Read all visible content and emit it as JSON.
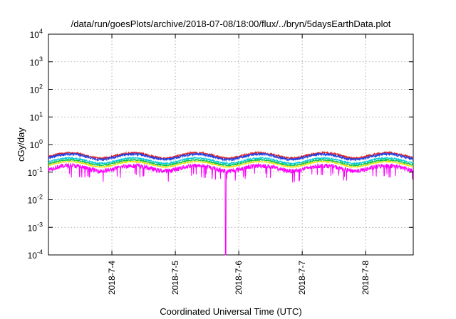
{
  "chart_data": {
    "type": "line",
    "title": "/data/run/goesPlots/archive/2018-07-08/18:00/flux/../bryn/5daysEarthData.plot",
    "xlabel": "Coordinated Universal Time (UTC)",
    "ylabel": "cGy/day",
    "yscale": "log",
    "ylim": [
      0.0001,
      10000
    ],
    "yticks": [
      {
        "value": 0.0001,
        "base": "10",
        "exp": "-4"
      },
      {
        "value": 0.001,
        "base": "10",
        "exp": "-3"
      },
      {
        "value": 0.01,
        "base": "10",
        "exp": "-2"
      },
      {
        "value": 0.1,
        "base": "10",
        "exp": "-1"
      },
      {
        "value": 1,
        "base": "10",
        "exp": "0"
      },
      {
        "value": 10,
        "base": "10",
        "exp": "1"
      },
      {
        "value": 100,
        "base": "10",
        "exp": "2"
      },
      {
        "value": 1000,
        "base": "10",
        "exp": "3"
      },
      {
        "value": 10000,
        "base": "10",
        "exp": "4"
      }
    ],
    "xlim": [
      "2018-07-03 00:00",
      "2018-07-08 18:00"
    ],
    "xticks": [
      {
        "value": "2018-07-04 00:00",
        "label": "2018-7-4"
      },
      {
        "value": "2018-07-05 00:00",
        "label": "2018-7-5"
      },
      {
        "value": "2018-07-06 00:00",
        "label": "2018-7-6"
      },
      {
        "value": "2018-07-07 00:00",
        "label": "2018-7-7"
      },
      {
        "value": "2018-07-08 00:00",
        "label": "2018-7-8"
      }
    ],
    "grid": true,
    "legend": "none",
    "series": [
      {
        "color": "#e02020",
        "level": 0.42,
        "noise": 0.18
      },
      {
        "color": "#2040e8",
        "level": 0.38,
        "noise": 0.2
      },
      {
        "color": "#00c8d8",
        "level": 0.27,
        "noise": 0.12
      },
      {
        "color": "#00c040",
        "level": 0.23,
        "noise": 0.1
      },
      {
        "color": "#e8e000",
        "level": 0.2,
        "noise": 0.08
      },
      {
        "color": "#ff00ff",
        "level": 0.15,
        "noise": 0.35
      }
    ],
    "events": [
      {
        "series": 5,
        "x": "2018-07-05 19:00",
        "value": 0.0001
      }
    ]
  }
}
